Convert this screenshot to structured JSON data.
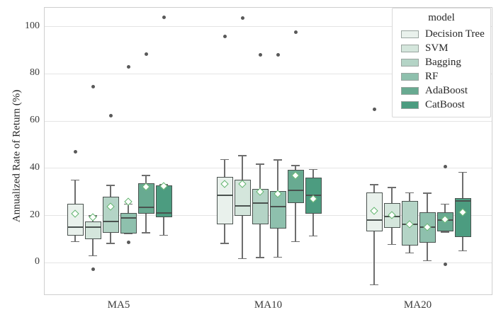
{
  "chart_data": {
    "type": "grouped_boxplot",
    "title": "",
    "xlabel": "",
    "ylabel": "Annualized Rate of Return (%)",
    "categories": [
      "MA5",
      "MA10",
      "MA20"
    ],
    "y_ticks": [
      0,
      20,
      40,
      60,
      80,
      100
    ],
    "ylim": [
      -14,
      108
    ],
    "grid": "horizontal",
    "legend": {
      "title": "model",
      "position": "upper right"
    },
    "style": {
      "grid_color": "#e4e4e4",
      "plot_border_color": "#cfcfcf",
      "box_edge_color": "#4a524f",
      "whisker_color": "#6e6e6e",
      "outlier_color": "#595959",
      "mean_marker": "white diamond with green edge",
      "mean_marker_edge_color": "#5db26a"
    },
    "series": [
      {
        "name": "Decision Tree",
        "color": "#e9f1ec",
        "boxes": [
          {
            "group": "MA5",
            "whisker_low": 9.0,
            "q1": 11.5,
            "median": 15.2,
            "q3": 25.0,
            "whisker_high": 35.0,
            "mean": 20.8,
            "outliers": [
              47.0
            ]
          },
          {
            "group": "MA10",
            "whisker_low": 8.2,
            "q1": 16.4,
            "median": 28.5,
            "q3": 36.5,
            "whisker_high": 43.7,
            "mean": 33.5,
            "outliers": [
              95.9
            ]
          },
          {
            "group": "MA20",
            "whisker_low": -9.3,
            "q1": 13.4,
            "median": 18.0,
            "q3": 29.8,
            "whisker_high": 33.1,
            "mean": 22.1,
            "outliers": [
              64.9
            ]
          }
        ]
      },
      {
        "name": "SVM",
        "color": "#d4e6dc",
        "boxes": [
          {
            "group": "MA5",
            "whisker_low": 3.0,
            "q1": 10.0,
            "median": 15.2,
            "q3": 17.6,
            "whisker_high": 19.8,
            "mean": 19.2,
            "outliers": [
              74.7,
              -2.9
            ]
          },
          {
            "group": "MA10",
            "whisker_low": 1.7,
            "q1": 19.8,
            "median": 24.0,
            "q3": 35.3,
            "whisker_high": 45.4,
            "mean": 33.5,
            "outliers": [
              103.8
            ]
          },
          {
            "group": "MA20",
            "whisker_low": 7.7,
            "q1": 14.7,
            "median": 19.7,
            "q3": 25.3,
            "whisker_high": 31.8,
            "mean": 20.3,
            "outliers": []
          }
        ]
      },
      {
        "name": "Bagging",
        "color": "#b4d4c6",
        "boxes": [
          {
            "group": "MA5",
            "whisker_low": 8.2,
            "q1": 12.8,
            "median": 17.5,
            "q3": 28.1,
            "whisker_high": 32.8,
            "mean": 23.8,
            "outliers": [
              62.2
            ]
          },
          {
            "group": "MA10",
            "whisker_low": 2.2,
            "q1": 16.2,
            "median": 25.3,
            "q3": 31.3,
            "whisker_high": 41.7,
            "mean": 30.1,
            "outliers": [
              88.0
            ]
          },
          {
            "group": "MA20",
            "whisker_low": 4.2,
            "q1": 7.4,
            "median": 16.2,
            "q3": 26.3,
            "whisker_high": 29.6,
            "mean": 16.2,
            "outliers": []
          }
        ]
      },
      {
        "name": "RF",
        "color": "#8ec0ad",
        "boxes": [
          {
            "group": "MA5",
            "whisker_low": 12.4,
            "q1": 12.4,
            "median": 19.0,
            "q3": 21.1,
            "whisker_high": 24.8,
            "mean": 26.0,
            "outliers": [
              83.1,
              8.5
            ]
          },
          {
            "group": "MA10",
            "whisker_low": 2.4,
            "q1": 14.4,
            "median": 23.8,
            "q3": 30.5,
            "whisker_high": 43.5,
            "mean": 29.3,
            "outliers": [
              88.0
            ]
          },
          {
            "group": "MA20",
            "whisker_low": 0.9,
            "q1": 8.4,
            "median": 15.0,
            "q3": 21.4,
            "whisker_high": 29.5,
            "mean": 15.0,
            "outliers": []
          }
        ]
      },
      {
        "name": "AdaBoost",
        "color": "#68aa91",
        "boxes": [
          {
            "group": "MA5",
            "whisker_low": 12.7,
            "q1": 20.8,
            "median": 23.5,
            "q3": 33.8,
            "whisker_high": 37.0,
            "mean": 32.1,
            "outliers": [
              88.5
            ]
          },
          {
            "group": "MA10",
            "whisker_low": 9.0,
            "q1": 25.3,
            "median": 30.8,
            "q3": 39.3,
            "whisker_high": 41.1,
            "mean": 36.9,
            "outliers": [
              97.6
            ]
          },
          {
            "group": "MA20",
            "whisker_low": 13.0,
            "q1": 13.4,
            "median": 18.2,
            "q3": 21.3,
            "whisker_high": 24.8,
            "mean": 18.5,
            "outliers": [
              40.8,
              -0.6
            ]
          }
        ]
      },
      {
        "name": "CatBoost",
        "color": "#4c9c80",
        "boxes": [
          {
            "group": "MA5",
            "whisker_low": 11.7,
            "q1": 19.2,
            "median": 21.0,
            "q3": 32.8,
            "whisker_high": 33.0,
            "mean": 32.5,
            "outliers": [
              103.9
            ]
          },
          {
            "group": "MA10",
            "whisker_low": 11.4,
            "q1": 20.8,
            "median": 28.7,
            "q3": 36.2,
            "whisker_high": 39.5,
            "mean": 27.2,
            "outliers": []
          },
          {
            "group": "MA20",
            "whisker_low": 5.0,
            "q1": 10.9,
            "median": 26.3,
            "q3": 27.5,
            "whisker_high": 38.3,
            "mean": 21.5,
            "outliers": []
          }
        ]
      }
    ]
  }
}
